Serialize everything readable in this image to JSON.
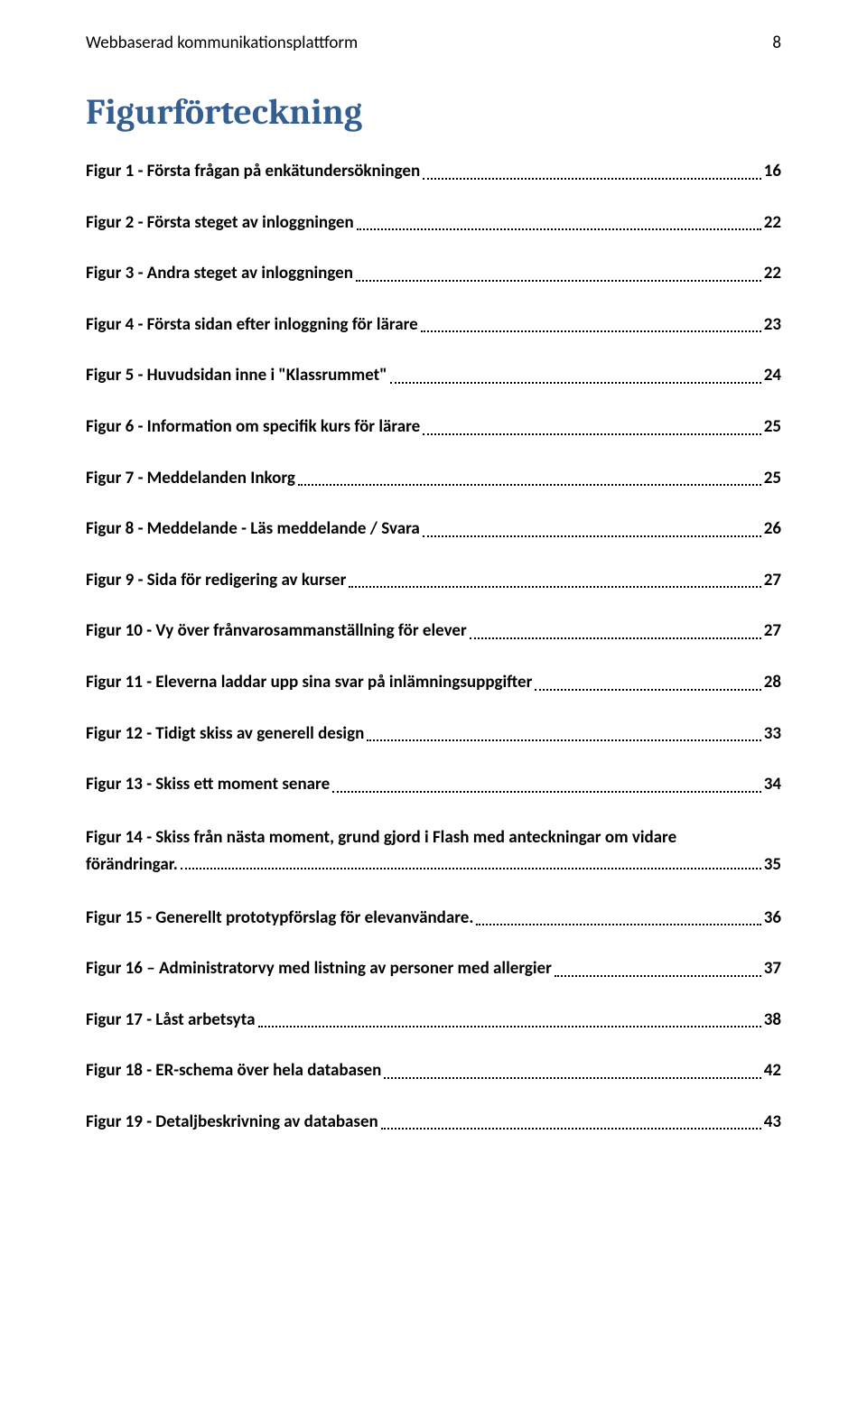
{
  "header": {
    "title": "Webbaserad kommunikationsplattform",
    "page_number": "8"
  },
  "heading": "Figurförteckning",
  "toc": [
    {
      "label": "Figur 1 - Första frågan på enkätundersökningen",
      "page": "16"
    },
    {
      "label": "Figur 2 - Första steget av inloggningen",
      "page": "22"
    },
    {
      "label": "Figur 3 - Andra steget av inloggningen",
      "page": "22"
    },
    {
      "label": "Figur 4 - Första sidan efter inloggning för lärare",
      "page": "23"
    },
    {
      "label": "Figur 5 - Huvudsidan inne i \"Klassrummet\"",
      "page": "24"
    },
    {
      "label": "Figur 6 - Information om specifik kurs för lärare",
      "page": "25"
    },
    {
      "label": "Figur 7 - Meddelanden Inkorg",
      "page": "25"
    },
    {
      "label": "Figur 8 - Meddelande - Läs meddelande /  Svara",
      "page": "26"
    },
    {
      "label": "Figur 9 - Sida för redigering av kurser",
      "page": "27"
    },
    {
      "label": "Figur 10 - Vy över frånvarosammanställning för elever",
      "page": "27"
    },
    {
      "label": "Figur 11 - Eleverna laddar upp sina svar på inlämningsuppgifter",
      "page": "28"
    },
    {
      "label": "Figur 12 - Tidigt skiss av generell design",
      "page": "33"
    },
    {
      "label": "Figur 13 - Skiss ett moment senare",
      "page": "34"
    },
    {
      "multiline": true,
      "label1": "Figur 14 - Skiss från nästa moment, grund gjord i Flash med anteckningar om vidare",
      "label2": "förändringar.",
      "page": "35"
    },
    {
      "label": "Figur 15 - Generellt prototypförslag för elevanvändare.",
      "page": "36"
    },
    {
      "label": "Figur 16 – Administratorvy med listning av personer med allergier",
      "page": "37"
    },
    {
      "label": "Figur 17 - Låst arbetsyta",
      "page": "38"
    },
    {
      "label": "Figur 18 - ER-schema över hela databasen",
      "page": "42"
    },
    {
      "label": "Figur 19 - Detaljbeskrivning av databasen",
      "page": "43"
    }
  ]
}
